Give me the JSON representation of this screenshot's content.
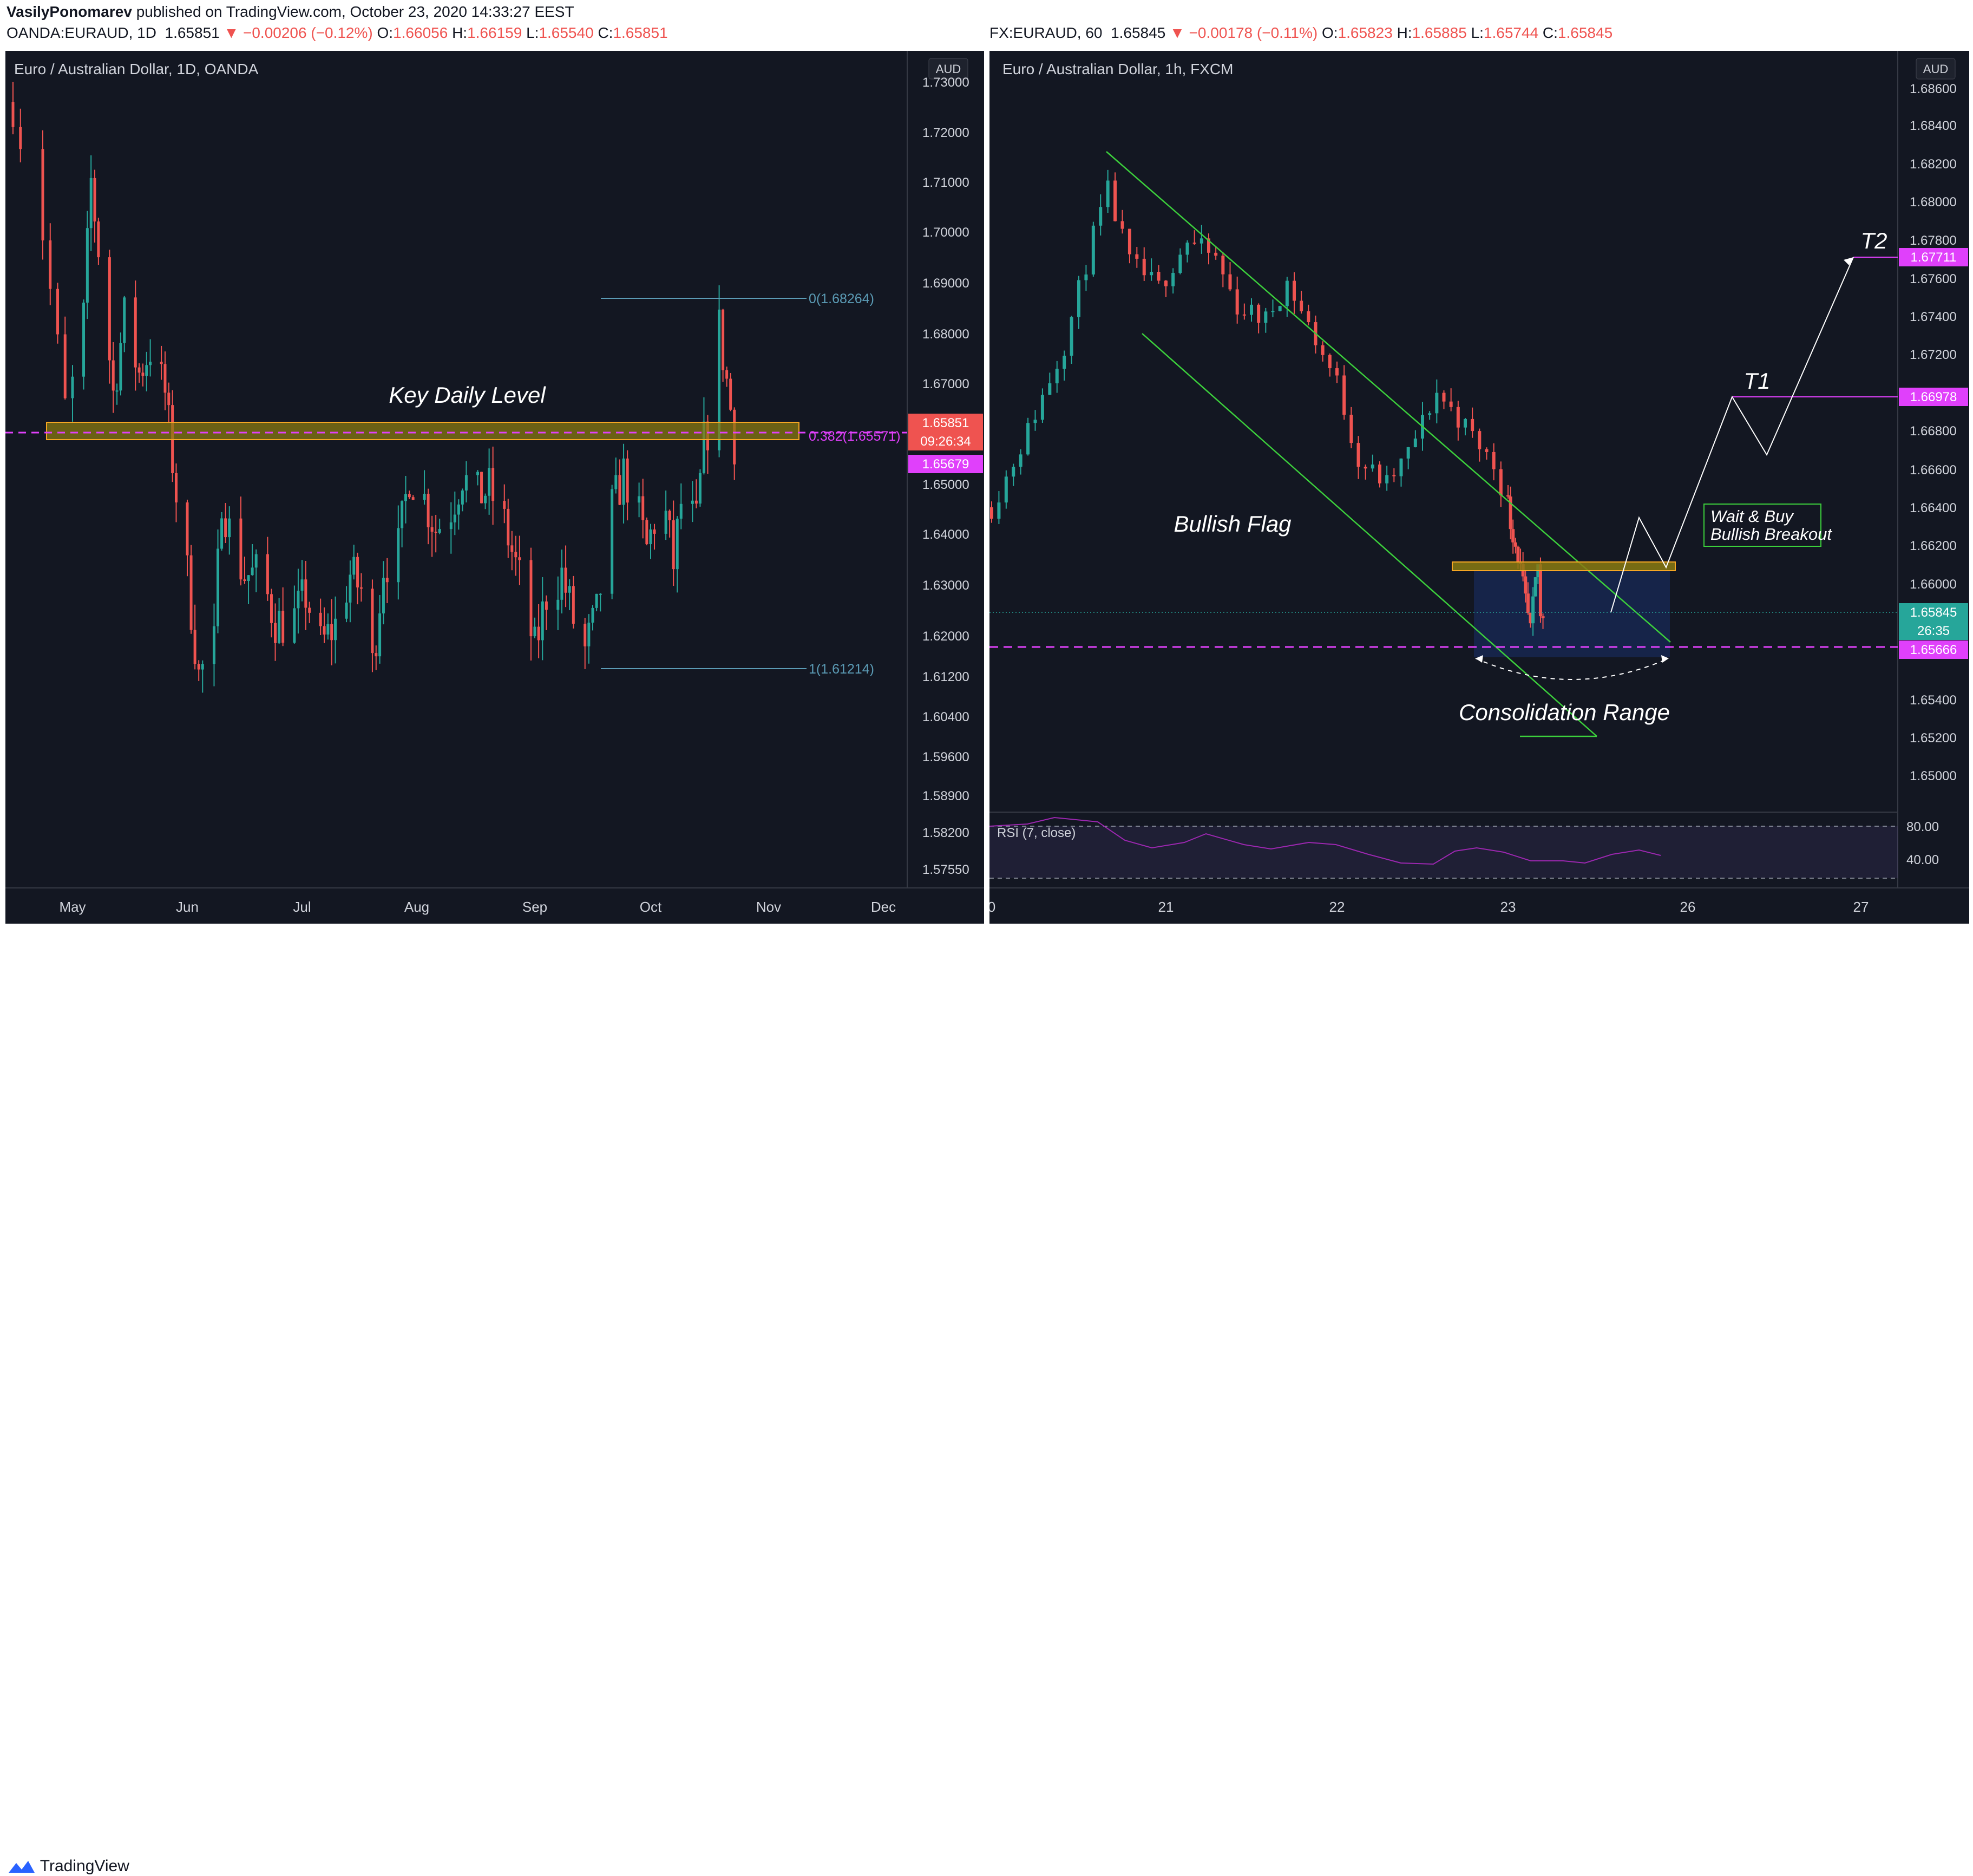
{
  "header": {
    "author": "VasilyPonomarev",
    "published": "published on TradingView.com, October 23, 2020 14:33:27 EEST"
  },
  "left_panel": {
    "symbol": "OANDA:EURAUD, 1D",
    "last": "1.65851",
    "change": "▼ −0.00206 (−0.12%)",
    "o_label": "O:",
    "o": "1.66056",
    "h_label": "H:",
    "h": "1.66159",
    "l_label": "L:",
    "l": "1.65540",
    "c_label": "C:",
    "c": "1.65851",
    "title": "Euro / Australian Dollar, 1D, OANDA",
    "currency": "AUD",
    "annotation": "Key Daily Level",
    "fib_top": "0(1.68264)",
    "fib_382": "0.382(1.65571)",
    "fib_bottom": "1(1.61214)",
    "price_tag": "1.65851",
    "countdown": "09:26:34",
    "level_tag": "1.65679"
  },
  "right_panel": {
    "symbol": "FX:EURAUD, 60",
    "last": "1.65845",
    "change": "▼ −0.00178 (−0.11%)",
    "o_label": "O:",
    "o": "1.65823",
    "h_label": "H:",
    "h": "1.65885",
    "l_label": "L:",
    "l": "1.65744",
    "c_label": "C:",
    "c": "1.65845",
    "title": "Euro / Australian Dollar, 1h, FXCM",
    "currency": "AUD",
    "label_flag": "Bullish Flag",
    "label_range": "Consolidation Range",
    "box_line1": "Wait & Buy",
    "box_line2": "Bullish Breakout",
    "t1": "T1",
    "t2": "T2",
    "t2_tag": "1.67711",
    "t1_tag": "1.66978",
    "price_tag": "1.65845",
    "countdown": "26:35",
    "level_tag": "1.65666",
    "rsi_label": "RSI (7, close)",
    "rsi_levels": [
      "80.00",
      "40.00"
    ]
  },
  "footer": {
    "brand": "TradingView"
  },
  "colors": {
    "background": "#131722",
    "up": "#26a69a",
    "down": "#ef5350",
    "zone_fill": "#8a7a10",
    "zone_border": "#f5a623",
    "level_magenta": "#e040fb",
    "channel_green": "#3cd03c",
    "fib_line": "#5b9bb5",
    "rsi_line": "#9c27b0"
  },
  "chart_data": [
    {
      "type": "candlestick",
      "title": "Euro / Australian Dollar, 1D, OANDA",
      "x_tick_labels": [
        "May",
        "Jun",
        "Jul",
        "Aug",
        "Sep",
        "Oct",
        "Nov",
        "Dec"
      ],
      "y_tick_labels": [
        "1.73000",
        "1.72000",
        "1.71000",
        "1.70000",
        "1.69000",
        "1.68000",
        "1.67000",
        "1.66000",
        "1.65000",
        "1.64000",
        "1.63000",
        "1.62000",
        "1.61200",
        "1.60400",
        "1.59600",
        "1.58900",
        "1.58200",
        "1.57550"
      ],
      "ylim": [
        1.5735,
        1.7315
      ],
      "key_zone": [
        1.6572,
        1.6606
      ],
      "horizontal_level": 1.65679,
      "fibonacci": [
        {
          "level": "0",
          "price": 1.68264
        },
        {
          "level": "0.382",
          "price": 1.65571
        },
        {
          "level": "1",
          "price": 1.61214
        }
      ],
      "close_path": [
        [
          "2020-04-23",
          1.726
        ],
        [
          "2020-04-27",
          1.7
        ],
        [
          "2020-04-30",
          1.665
        ],
        [
          "2020-05-04",
          1.683
        ],
        [
          "2020-05-06",
          1.71
        ],
        [
          "2020-05-09",
          1.69
        ],
        [
          "2020-05-12",
          1.668
        ],
        [
          "2020-05-15",
          1.683
        ],
        [
          "2020-05-19",
          1.672
        ],
        [
          "2020-05-22",
          1.677
        ],
        [
          "2020-05-26",
          1.668
        ],
        [
          "2020-05-29",
          1.648
        ],
        [
          "2020-06-01",
          1.632
        ],
        [
          "2020-06-04",
          1.612
        ],
        [
          "2020-06-08",
          1.618
        ],
        [
          "2020-06-10",
          1.648
        ],
        [
          "2020-06-13",
          1.637
        ],
        [
          "2020-06-16",
          1.632
        ],
        [
          "2020-06-20",
          1.632
        ],
        [
          "2020-06-24",
          1.623
        ],
        [
          "2020-06-28",
          1.622
        ],
        [
          "2020-07-02",
          1.628
        ],
        [
          "2020-07-06",
          1.618
        ],
        [
          "2020-07-10",
          1.622
        ],
        [
          "2020-07-14",
          1.632
        ],
        [
          "2020-07-18",
          1.628
        ],
        [
          "2020-07-20",
          1.614
        ],
        [
          "2020-07-23",
          1.634
        ],
        [
          "2020-07-27",
          1.637
        ],
        [
          "2020-07-30",
          1.652
        ],
        [
          "2020-08-03",
          1.647
        ],
        [
          "2020-08-06",
          1.641
        ],
        [
          "2020-08-10",
          1.645
        ],
        [
          "2020-08-13",
          1.652
        ],
        [
          "2020-08-16",
          1.647
        ],
        [
          "2020-08-20",
          1.649
        ],
        [
          "2020-08-24",
          1.642
        ],
        [
          "2020-08-28",
          1.631
        ],
        [
          "2020-09-01",
          1.617
        ],
        [
          "2020-09-04",
          1.628
        ],
        [
          "2020-09-08",
          1.632
        ],
        [
          "2020-09-11",
          1.623
        ],
        [
          "2020-09-14",
          1.617
        ],
        [
          "2020-09-17",
          1.624
        ],
        [
          "2020-09-21",
          1.645
        ],
        [
          "2020-09-24",
          1.652
        ],
        [
          "2020-09-27",
          1.646
        ],
        [
          "2020-09-30",
          1.637
        ],
        [
          "2020-10-04",
          1.648
        ],
        [
          "2020-10-07",
          1.634
        ],
        [
          "2020-10-09",
          1.646
        ],
        [
          "2020-10-13",
          1.642
        ],
        [
          "2020-10-15",
          1.658
        ],
        [
          "2020-10-18",
          1.667
        ],
        [
          "2020-10-19",
          1.681
        ],
        [
          "2020-10-22",
          1.665
        ],
        [
          "2020-10-23",
          1.6585
        ]
      ]
    },
    {
      "type": "candlestick",
      "title": "Euro / Australian Dollar, 1h, FXCM",
      "x_tick_labels": [
        "0",
        "21",
        "22",
        "23",
        "26",
        "27"
      ],
      "y_tick_labels": [
        "1.68600",
        "1.68400",
        "1.68200",
        "1.68000",
        "1.67800",
        "1.67600",
        "1.67400",
        "1.67200",
        "1.66800",
        "1.66600",
        "1.66400",
        "1.66200",
        "1.66000",
        "1.65400",
        "1.65200",
        "1.65000"
      ],
      "ylim": [
        1.6488,
        1.687
      ],
      "resistance_zone": [
        1.6606,
        1.6612
      ],
      "horizontal_level": 1.65666,
      "targets": [
        {
          "name": "T1",
          "price": 1.66978
        },
        {
          "name": "T2",
          "price": 1.67711
        }
      ],
      "flag_channel": {
        "upper": [
          [
            "2020-10-20 16:00",
            1.6828
          ],
          [
            "2020-10-23 18:00",
            1.6565
          ]
        ],
        "lower": [
          [
            "2020-10-20 23:00",
            1.6733
          ],
          [
            "2020-10-23 12:00",
            1.6518
          ]
        ]
      },
      "projection": [
        [
          "2020-10-23 14:00",
          1.6585
        ],
        [
          "2020-10-23 17:00",
          1.6634
        ],
        [
          "2020-10-23 21:00",
          1.6609
        ],
        [
          "2020-10-26 07:00",
          1.66978
        ],
        [
          "2020-10-26 10:00",
          1.6683
        ],
        [
          "2020-10-26 22:00",
          1.67711
        ]
      ],
      "close_path": [
        [
          "2020-10-20 00:00",
          1.664
        ],
        [
          "2020-10-20 05:00",
          1.668
        ],
        [
          "2020-10-20 10:00",
          1.6725
        ],
        [
          "2020-10-20 14:00",
          1.6782
        ],
        [
          "2020-10-20 16:00",
          1.6805
        ],
        [
          "2020-10-20 19:00",
          1.6768
        ],
        [
          "2020-10-20 23:00",
          1.6755
        ],
        [
          "2020-10-21 03:00",
          1.678
        ],
        [
          "2020-10-21 07:00",
          1.677
        ],
        [
          "2020-10-21 10:00",
          1.6745
        ],
        [
          "2020-10-21 14:00",
          1.6738
        ],
        [
          "2020-10-21 17:00",
          1.6758
        ],
        [
          "2020-10-21 20:00",
          1.6735
        ],
        [
          "2020-10-22 00:00",
          1.6705
        ],
        [
          "2020-10-22 03:00",
          1.6665
        ],
        [
          "2020-10-22 07:00",
          1.6652
        ],
        [
          "2020-10-22 10:00",
          1.6668
        ],
        [
          "2020-10-22 14:00",
          1.67
        ],
        [
          "2020-10-22 18:00",
          1.6682
        ],
        [
          "2020-10-22 22:00",
          1.6662
        ],
        [
          "2020-10-23 01:00",
          1.6632
        ],
        [
          "2020-10-23 04:00",
          1.6615
        ],
        [
          "2020-10-23 07:00",
          1.659
        ],
        [
          "2020-10-23 09:00",
          1.6575
        ],
        [
          "2020-10-23 11:00",
          1.66
        ],
        [
          "2020-10-23 12:00",
          1.661
        ],
        [
          "2020-10-23 13:00",
          1.6582
        ],
        [
          "2020-10-23 14:00",
          1.6585
        ]
      ]
    }
  ]
}
